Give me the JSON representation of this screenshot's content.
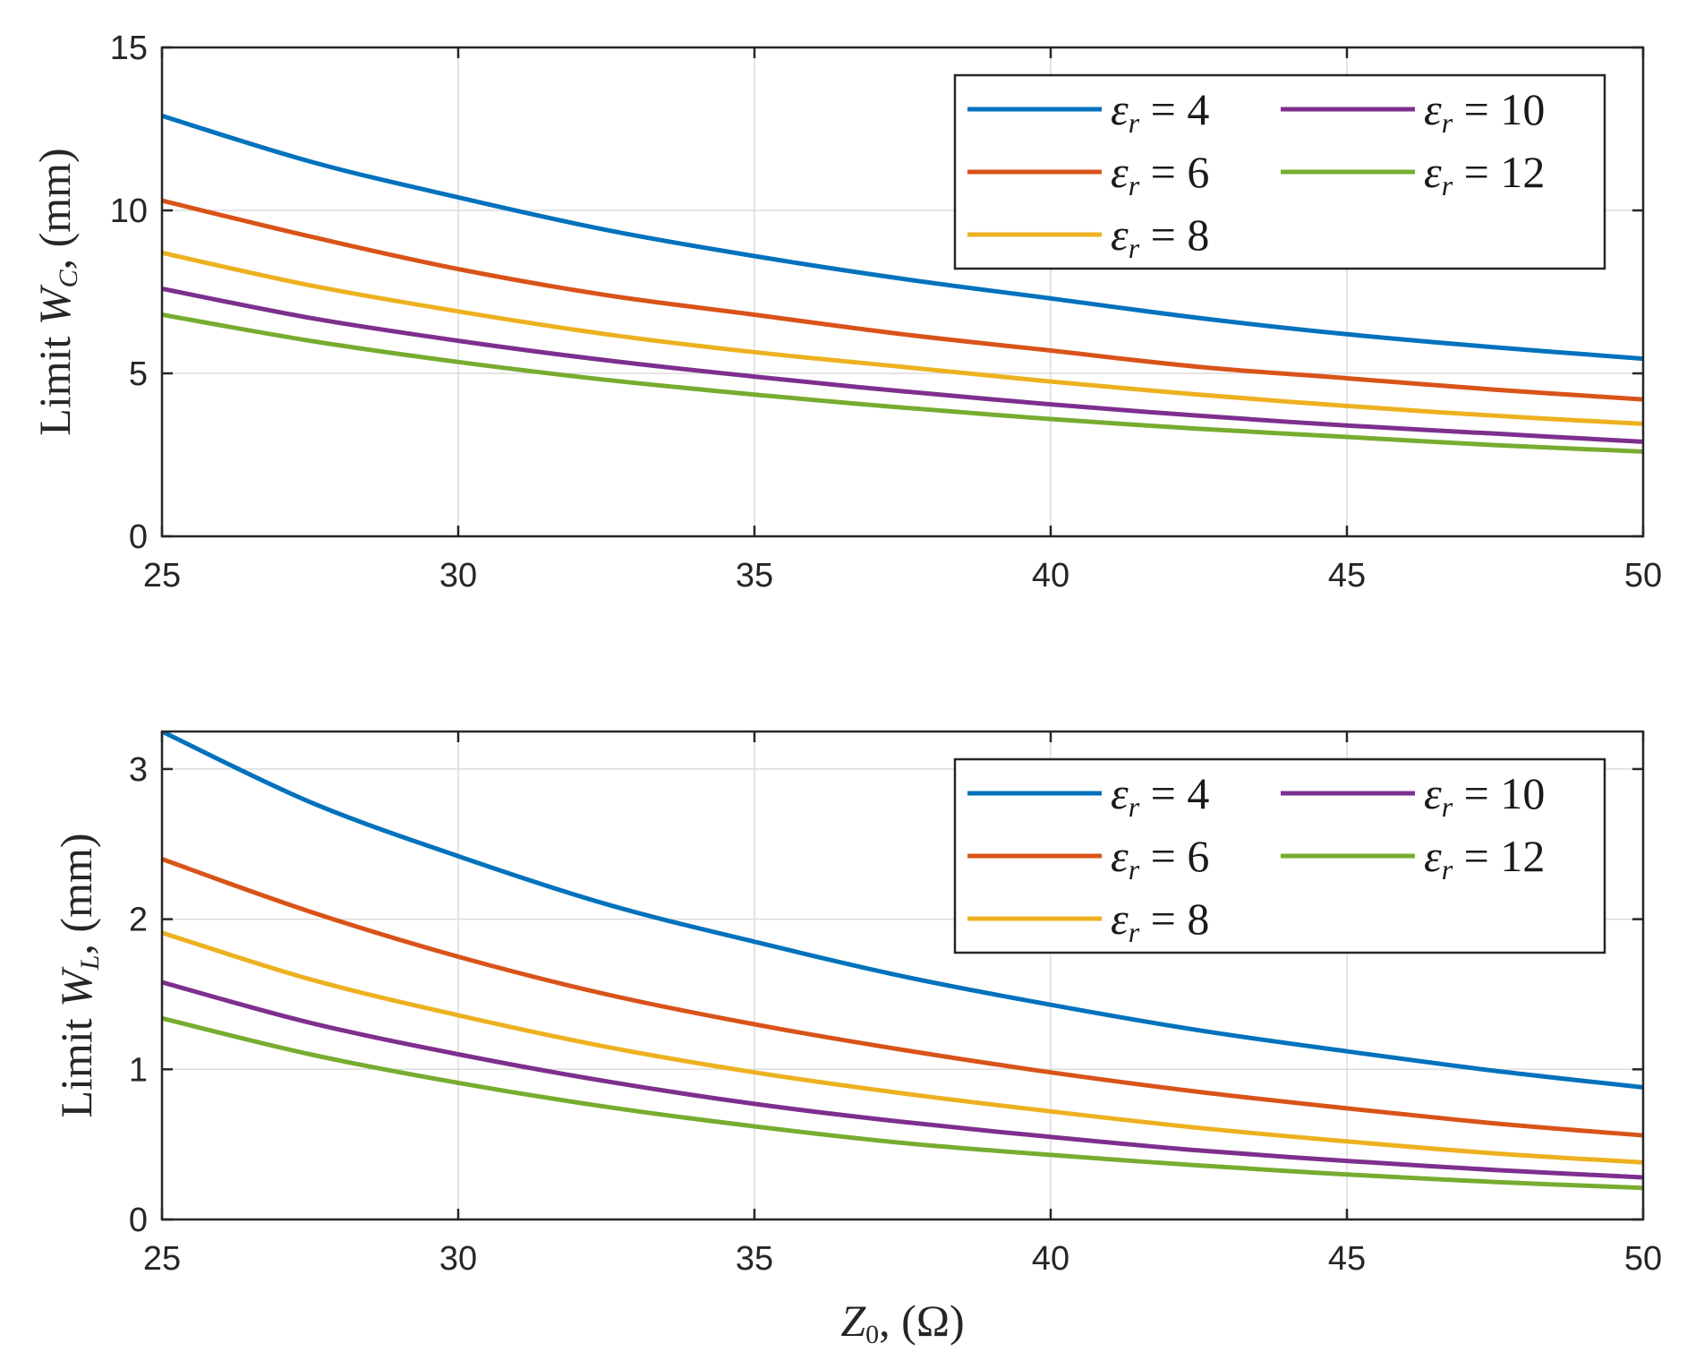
{
  "chart_data": [
    {
      "type": "line",
      "ylabel": "Limit W_C, (mm)",
      "ylabel_parts": {
        "prefix": "Limit ",
        "var": "W",
        "sub": "C",
        "suffix": ", (mm)"
      },
      "xlabel": "",
      "xlim": [
        25,
        50
      ],
      "ylim": [
        0,
        15
      ],
      "xticks": [
        25,
        30,
        35,
        40,
        45,
        50
      ],
      "yticks": [
        0,
        5,
        10,
        15
      ],
      "grid": true,
      "legend": "top-right",
      "x": [
        25,
        27.5,
        30,
        32.5,
        35,
        37.5,
        40,
        42.5,
        45,
        47.5,
        50
      ],
      "series": [
        {
          "name": "εr = 4",
          "color": "#0072BD",
          "values": [
            12.9,
            11.5,
            10.4,
            9.4,
            8.6,
            7.9,
            7.3,
            6.7,
            6.2,
            5.8,
            5.45
          ]
        },
        {
          "name": "εr = 6",
          "color": "#D95319",
          "values": [
            10.3,
            9.2,
            8.2,
            7.4,
            6.8,
            6.2,
            5.7,
            5.2,
            4.85,
            4.5,
            4.2
          ]
        },
        {
          "name": "εr = 8",
          "color": "#EDB120",
          "values": [
            8.7,
            7.7,
            6.9,
            6.2,
            5.65,
            5.2,
            4.75,
            4.35,
            4.0,
            3.7,
            3.45
          ]
        },
        {
          "name": "εr = 10",
          "color": "#7E2F8E",
          "values": [
            7.6,
            6.7,
            6.0,
            5.4,
            4.9,
            4.45,
            4.05,
            3.7,
            3.4,
            3.15,
            2.9
          ]
        },
        {
          "name": "εr = 12",
          "color": "#77AC30",
          "values": [
            6.8,
            6.0,
            5.35,
            4.8,
            4.35,
            3.95,
            3.6,
            3.3,
            3.05,
            2.8,
            2.6
          ]
        }
      ]
    },
    {
      "type": "line",
      "ylabel": "Limit W_L, (mm)",
      "ylabel_parts": {
        "prefix": "Limit ",
        "var": "W",
        "sub": "L",
        "suffix": ", (mm)"
      },
      "xlabel": "Z_0, (Ω)",
      "xlabel_parts": {
        "var": "Z",
        "sub": "0",
        "suffix": ", (Ω)"
      },
      "xlim": [
        25,
        50
      ],
      "ylim": [
        0,
        3.25
      ],
      "xticks": [
        25,
        30,
        35,
        40,
        45,
        50
      ],
      "yticks": [
        0,
        1,
        2,
        3
      ],
      "grid": true,
      "legend": "top-right",
      "x": [
        25,
        27.5,
        30,
        32.5,
        35,
        37.5,
        40,
        42.5,
        45,
        47.5,
        50
      ],
      "series": [
        {
          "name": "εr = 4",
          "color": "#0072BD",
          "values": [
            3.25,
            2.78,
            2.42,
            2.1,
            1.85,
            1.62,
            1.43,
            1.26,
            1.12,
            0.99,
            0.88
          ]
        },
        {
          "name": "εr = 6",
          "color": "#D95319",
          "values": [
            2.4,
            2.05,
            1.75,
            1.5,
            1.3,
            1.13,
            0.98,
            0.85,
            0.74,
            0.64,
            0.56
          ]
        },
        {
          "name": "εr = 8",
          "color": "#EDB120",
          "values": [
            1.91,
            1.6,
            1.36,
            1.15,
            0.98,
            0.84,
            0.72,
            0.61,
            0.52,
            0.44,
            0.38
          ]
        },
        {
          "name": "εr = 10",
          "color": "#7E2F8E",
          "values": [
            1.58,
            1.31,
            1.1,
            0.92,
            0.77,
            0.65,
            0.55,
            0.46,
            0.39,
            0.33,
            0.28
          ]
        },
        {
          "name": "εr = 12",
          "color": "#77AC30",
          "values": [
            1.34,
            1.1,
            0.91,
            0.75,
            0.62,
            0.51,
            0.43,
            0.36,
            0.3,
            0.25,
            0.21
          ]
        }
      ]
    }
  ]
}
